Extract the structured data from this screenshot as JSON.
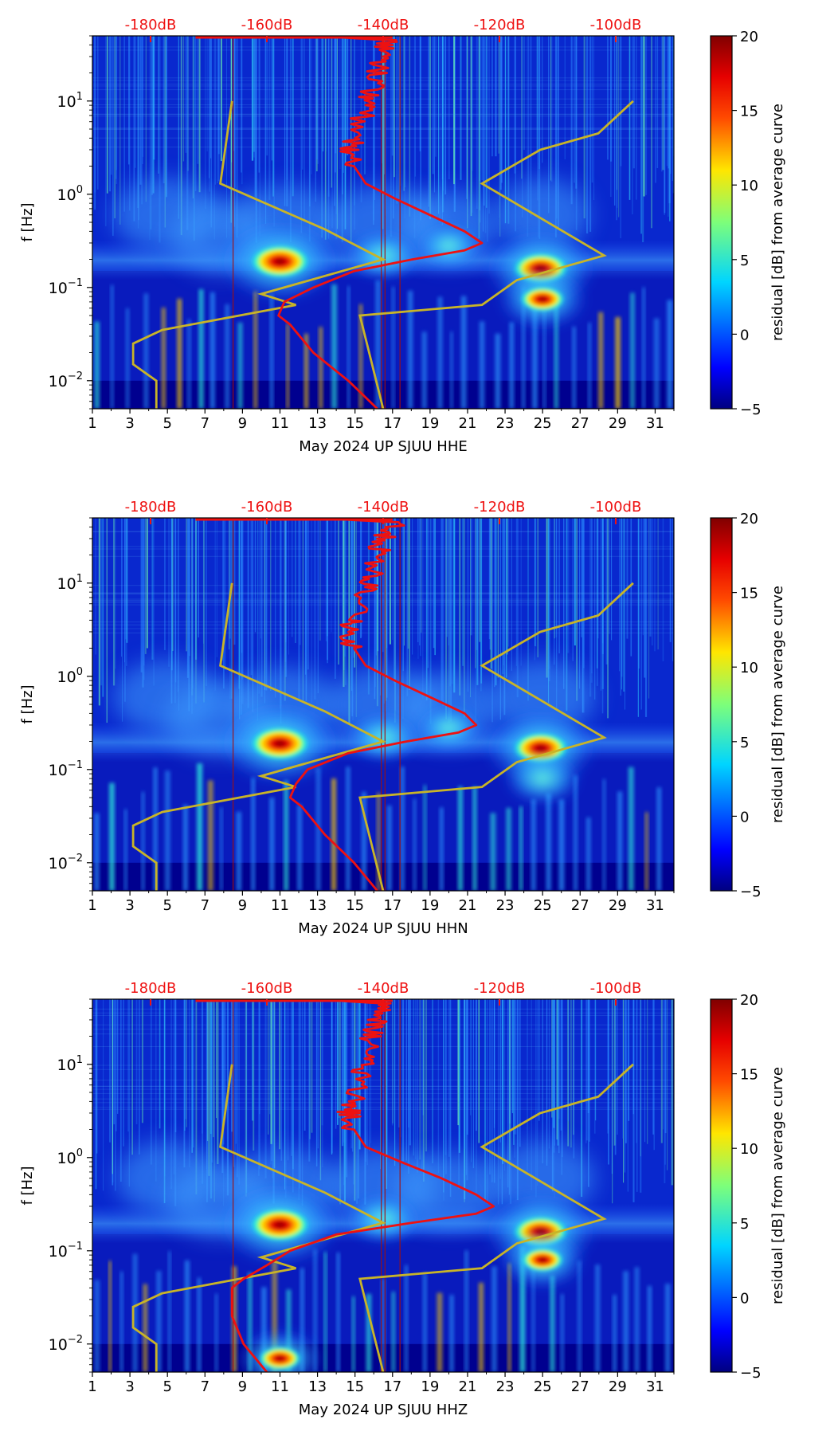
{
  "figure": {
    "colors": {
      "deep": "#00008f",
      "base": "#0a2fd9",
      "red_curve": "#ee1111",
      "model_curve": "#c8b428",
      "top_label": "#ee1111",
      "axis": "#000000"
    }
  },
  "chart_data": [
    {
      "type": "heatmap",
      "title": "",
      "xlabel": "May 2024 UP SJUU  HHE",
      "ylabel": "f [Hz]",
      "xlim": [
        1,
        32
      ],
      "ylim": [
        0.005,
        50
      ],
      "yscale": "log",
      "x_ticks": [
        "1",
        "3",
        "5",
        "7",
        "9",
        "11",
        "13",
        "15",
        "17",
        "19",
        "21",
        "23",
        "25",
        "27",
        "29",
        "31"
      ],
      "y_ticks": [
        {
          "value": 0.01,
          "base": "10",
          "exp": "−2"
        },
        {
          "value": 0.1,
          "base": "10",
          "exp": "−1"
        },
        {
          "value": 1,
          "base": "10",
          "exp": "0"
        },
        {
          "value": 10,
          "base": "10",
          "exp": "1"
        }
      ],
      "top_axis_labels": [
        "-180dB",
        "-160dB",
        "-140dB",
        "-120dB",
        "-100dB"
      ],
      "colorbar": {
        "label": "residual [dB] from average curve",
        "ticks": [
          "20",
          "15",
          "10",
          "5",
          "0",
          "−5"
        ],
        "range": [
          -5,
          20
        ]
      },
      "hotspots": [
        {
          "day": 11.0,
          "freq": 0.19,
          "amp": 20
        },
        {
          "day": 24.9,
          "freq": 0.16,
          "amp": 18
        },
        {
          "day": 25.0,
          "freq": 0.075,
          "amp": 13
        },
        {
          "day": 16.5,
          "freq": 0.22,
          "amp": 9
        },
        {
          "day": 20.0,
          "freq": 0.28,
          "amp": 7
        }
      ],
      "average_psd_curve": {
        "name": "average PSD",
        "points": [
          {
            "db": -152,
            "freq": 50
          },
          {
            "db": -139,
            "freq": 45
          },
          {
            "db": -140,
            "freq": 30
          },
          {
            "db": -141,
            "freq": 20
          },
          {
            "db": -142,
            "freq": 12
          },
          {
            "db": -143,
            "freq": 8
          },
          {
            "db": -145,
            "freq": 4
          },
          {
            "db": -146,
            "freq": 3
          },
          {
            "db": -145,
            "freq": 2
          },
          {
            "db": -143,
            "freq": 1.3
          },
          {
            "db": -138,
            "freq": 0.9
          },
          {
            "db": -132,
            "freq": 0.6
          },
          {
            "db": -126,
            "freq": 0.4
          },
          {
            "db": -123,
            "freq": 0.3
          },
          {
            "db": -126,
            "freq": 0.25
          },
          {
            "db": -135,
            "freq": 0.2
          },
          {
            "db": -145,
            "freq": 0.15
          },
          {
            "db": -152,
            "freq": 0.1
          },
          {
            "db": -157,
            "freq": 0.07
          },
          {
            "db": -158,
            "freq": 0.05
          },
          {
            "db": -156,
            "freq": 0.04
          },
          {
            "db": -152,
            "freq": 0.02
          },
          {
            "db": -146,
            "freq": 0.01
          },
          {
            "db": -141,
            "freq": 0.005
          }
        ]
      },
      "noise_model_curve": {
        "name": "noise model",
        "points": [
          {
            "db": -179,
            "freq": 0.005
          },
          {
            "db": -179,
            "freq": 0.01
          },
          {
            "db": -183,
            "freq": 0.015
          },
          {
            "db": -183,
            "freq": 0.025
          },
          {
            "db": -178,
            "freq": 0.035
          },
          {
            "db": -155,
            "freq": 0.065
          },
          {
            "db": -161,
            "freq": 0.085
          },
          {
            "db": -140,
            "freq": 0.2
          },
          {
            "db": -150,
            "freq": 0.42
          },
          {
            "db": -168,
            "freq": 1.3
          },
          {
            "db": -166,
            "freq": 10
          },
          {
            "db": -140,
            "freq": 0.005
          },
          {
            "db": -144,
            "freq": 0.05
          },
          {
            "db": -123,
            "freq": 0.065
          },
          {
            "db": -117,
            "freq": 0.12
          },
          {
            "db": -102,
            "freq": 0.22
          },
          {
            "db": -123,
            "freq": 1.3
          },
          {
            "db": -113,
            "freq": 3.0
          },
          {
            "db": -103,
            "freq": 4.5
          },
          {
            "db": -97,
            "freq": 10
          }
        ]
      }
    },
    {
      "type": "heatmap",
      "title": "",
      "xlabel": "May 2024 UP SJUU  HHN",
      "ylabel": "f [Hz]",
      "xlim": [
        1,
        32
      ],
      "ylim": [
        0.005,
        50
      ],
      "yscale": "log",
      "x_ticks": [
        "1",
        "3",
        "5",
        "7",
        "9",
        "11",
        "13",
        "15",
        "17",
        "19",
        "21",
        "23",
        "25",
        "27",
        "29",
        "31"
      ],
      "y_ticks": [
        {
          "value": 0.01,
          "base": "10",
          "exp": "−2"
        },
        {
          "value": 0.1,
          "base": "10",
          "exp": "−1"
        },
        {
          "value": 1,
          "base": "10",
          "exp": "0"
        },
        {
          "value": 10,
          "base": "10",
          "exp": "1"
        }
      ],
      "top_axis_labels": [
        "-180dB",
        "-160dB",
        "-140dB",
        "-120dB",
        "-100dB"
      ],
      "colorbar": {
        "label": "residual [dB] from average curve",
        "ticks": [
          "20",
          "15",
          "10",
          "5",
          "0",
          "−5"
        ],
        "range": [
          -5,
          20
        ]
      },
      "hotspots": [
        {
          "day": 11.0,
          "freq": 0.19,
          "amp": 20
        },
        {
          "day": 24.9,
          "freq": 0.17,
          "amp": 18
        },
        {
          "day": 25.0,
          "freq": 0.08,
          "amp": 10
        },
        {
          "day": 16.5,
          "freq": 0.22,
          "amp": 9
        },
        {
          "day": 20.0,
          "freq": 0.28,
          "amp": 7
        }
      ],
      "average_psd_curve": {
        "name": "average PSD",
        "points": [
          {
            "db": -152,
            "freq": 50
          },
          {
            "db": -138,
            "freq": 45
          },
          {
            "db": -140,
            "freq": 30
          },
          {
            "db": -141,
            "freq": 20
          },
          {
            "db": -142,
            "freq": 12
          },
          {
            "db": -143,
            "freq": 8
          },
          {
            "db": -145,
            "freq": 4
          },
          {
            "db": -146,
            "freq": 3
          },
          {
            "db": -145,
            "freq": 2
          },
          {
            "db": -143,
            "freq": 1.3
          },
          {
            "db": -138,
            "freq": 0.9
          },
          {
            "db": -132,
            "freq": 0.6
          },
          {
            "db": -126,
            "freq": 0.4
          },
          {
            "db": -124,
            "freq": 0.3
          },
          {
            "db": -127,
            "freq": 0.25
          },
          {
            "db": -136,
            "freq": 0.2
          },
          {
            "db": -146,
            "freq": 0.15
          },
          {
            "db": -153,
            "freq": 0.1
          },
          {
            "db": -155,
            "freq": 0.07
          },
          {
            "db": -156,
            "freq": 0.05
          },
          {
            "db": -154,
            "freq": 0.04
          },
          {
            "db": -150,
            "freq": 0.02
          },
          {
            "db": -145,
            "freq": 0.01
          },
          {
            "db": -141,
            "freq": 0.005
          }
        ]
      },
      "noise_model_curve": {
        "name": "noise model",
        "points": [
          {
            "db": -179,
            "freq": 0.005
          },
          {
            "db": -179,
            "freq": 0.01
          },
          {
            "db": -183,
            "freq": 0.015
          },
          {
            "db": -183,
            "freq": 0.025
          },
          {
            "db": -178,
            "freq": 0.035
          },
          {
            "db": -155,
            "freq": 0.065
          },
          {
            "db": -161,
            "freq": 0.085
          },
          {
            "db": -140,
            "freq": 0.2
          },
          {
            "db": -150,
            "freq": 0.42
          },
          {
            "db": -168,
            "freq": 1.3
          },
          {
            "db": -166,
            "freq": 10
          },
          {
            "db": -140,
            "freq": 0.005
          },
          {
            "db": -144,
            "freq": 0.05
          },
          {
            "db": -123,
            "freq": 0.065
          },
          {
            "db": -117,
            "freq": 0.12
          },
          {
            "db": -102,
            "freq": 0.22
          },
          {
            "db": -123,
            "freq": 1.3
          },
          {
            "db": -113,
            "freq": 3.0
          },
          {
            "db": -103,
            "freq": 4.5
          },
          {
            "db": -97,
            "freq": 10
          }
        ]
      }
    },
    {
      "type": "heatmap",
      "title": "",
      "xlabel": "May 2024 UP SJUU  HHZ",
      "ylabel": "f [Hz]",
      "xlim": [
        1,
        32
      ],
      "ylim": [
        0.005,
        50
      ],
      "yscale": "log",
      "x_ticks": [
        "1",
        "3",
        "5",
        "7",
        "9",
        "11",
        "13",
        "15",
        "17",
        "19",
        "21",
        "23",
        "25",
        "27",
        "29",
        "31"
      ],
      "y_ticks": [
        {
          "value": 0.01,
          "base": "10",
          "exp": "−2"
        },
        {
          "value": 0.1,
          "base": "10",
          "exp": "−1"
        },
        {
          "value": 1,
          "base": "10",
          "exp": "0"
        },
        {
          "value": 10,
          "base": "10",
          "exp": "1"
        }
      ],
      "top_axis_labels": [
        "-180dB",
        "-160dB",
        "-140dB",
        "-120dB",
        "-100dB"
      ],
      "colorbar": {
        "label": "residual [dB] from average curve",
        "ticks": [
          "20",
          "15",
          "10",
          "5",
          "0",
          "−5"
        ],
        "range": [
          -5,
          20
        ]
      },
      "hotspots": [
        {
          "day": 11.0,
          "freq": 0.19,
          "amp": 20
        },
        {
          "day": 24.9,
          "freq": 0.16,
          "amp": 18
        },
        {
          "day": 25.0,
          "freq": 0.08,
          "amp": 12
        },
        {
          "day": 11.0,
          "freq": 0.007,
          "amp": 12
        },
        {
          "day": 16.5,
          "freq": 0.22,
          "amp": 9
        }
      ],
      "average_psd_curve": {
        "name": "average PSD",
        "points": [
          {
            "db": -152,
            "freq": 50
          },
          {
            "db": -140,
            "freq": 45
          },
          {
            "db": -141,
            "freq": 30
          },
          {
            "db": -142,
            "freq": 20
          },
          {
            "db": -143,
            "freq": 12
          },
          {
            "db": -144,
            "freq": 8
          },
          {
            "db": -145,
            "freq": 4
          },
          {
            "db": -146,
            "freq": 3
          },
          {
            "db": -145,
            "freq": 2
          },
          {
            "db": -143,
            "freq": 1.3
          },
          {
            "db": -137,
            "freq": 0.9
          },
          {
            "db": -130,
            "freq": 0.6
          },
          {
            "db": -124,
            "freq": 0.4
          },
          {
            "db": -121,
            "freq": 0.3
          },
          {
            "db": -124,
            "freq": 0.25
          },
          {
            "db": -135,
            "freq": 0.2
          },
          {
            "db": -148,
            "freq": 0.15
          },
          {
            "db": -156,
            "freq": 0.1
          },
          {
            "db": -160,
            "freq": 0.07
          },
          {
            "db": -164,
            "freq": 0.05
          },
          {
            "db": -166,
            "freq": 0.04
          },
          {
            "db": -166,
            "freq": 0.02
          },
          {
            "db": -164,
            "freq": 0.01
          },
          {
            "db": -160,
            "freq": 0.005
          }
        ]
      },
      "noise_model_curve": {
        "name": "noise model",
        "points": [
          {
            "db": -179,
            "freq": 0.005
          },
          {
            "db": -179,
            "freq": 0.01
          },
          {
            "db": -183,
            "freq": 0.015
          },
          {
            "db": -183,
            "freq": 0.025
          },
          {
            "db": -178,
            "freq": 0.035
          },
          {
            "db": -155,
            "freq": 0.065
          },
          {
            "db": -161,
            "freq": 0.085
          },
          {
            "db": -140,
            "freq": 0.2
          },
          {
            "db": -150,
            "freq": 0.42
          },
          {
            "db": -168,
            "freq": 1.3
          },
          {
            "db": -166,
            "freq": 10
          },
          {
            "db": -140,
            "freq": 0.005
          },
          {
            "db": -144,
            "freq": 0.05
          },
          {
            "db": -123,
            "freq": 0.065
          },
          {
            "db": -117,
            "freq": 0.12
          },
          {
            "db": -102,
            "freq": 0.22
          },
          {
            "db": -123,
            "freq": 1.3
          },
          {
            "db": -113,
            "freq": 3.0
          },
          {
            "db": -103,
            "freq": 4.5
          },
          {
            "db": -97,
            "freq": 10
          }
        ]
      }
    }
  ]
}
